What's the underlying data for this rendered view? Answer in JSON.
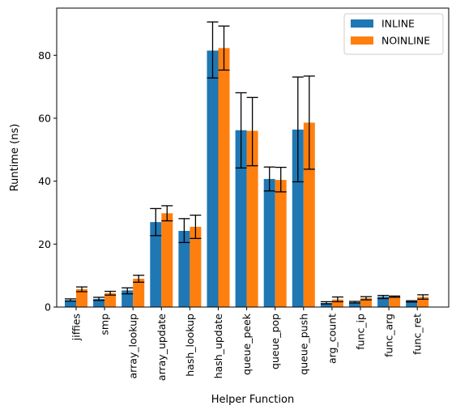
{
  "chart_data": {
    "type": "bar",
    "xlabel": "Helper Function",
    "ylabel": "Runtime (ns)",
    "ylim": [
      0,
      95
    ],
    "yticks": [
      0,
      20,
      40,
      60,
      80
    ],
    "grid": false,
    "legend_position": "top-right",
    "categories": [
      "jiffies",
      "smp",
      "array_lookup",
      "array_update",
      "hash_lookup",
      "hash_update",
      "queue_peek",
      "queue_pop",
      "queue_push",
      "arg_count",
      "func_ip",
      "func_arg",
      "func_ret"
    ],
    "series": [
      {
        "name": "INLINE",
        "color": "#1f77b4",
        "values": [
          2.2,
          2.6,
          5.3,
          27.0,
          24.2,
          81.5,
          56.2,
          40.7,
          56.4,
          1.3,
          1.5,
          3.3,
          1.8
        ],
        "err_low": [
          1.9,
          2.1,
          4.2,
          22.7,
          20.5,
          72.8,
          44.2,
          36.9,
          39.8,
          1.0,
          1.3,
          2.7,
          1.6
        ],
        "err_high": [
          2.6,
          3.1,
          6.1,
          31.3,
          28.1,
          90.6,
          68.1,
          44.5,
          73.1,
          1.7,
          1.8,
          3.7,
          2.0
        ]
      },
      {
        "name": "NOINLINE",
        "color": "#ff7f0e",
        "values": [
          5.7,
          4.4,
          9.0,
          29.8,
          25.5,
          82.3,
          56.0,
          40.4,
          58.6,
          2.4,
          2.8,
          3.3,
          3.2
        ],
        "err_low": [
          4.9,
          3.8,
          7.9,
          27.4,
          21.8,
          75.3,
          44.9,
          36.6,
          43.8,
          1.7,
          2.3,
          3.1,
          2.5
        ],
        "err_high": [
          6.4,
          5.0,
          10.1,
          32.2,
          29.2,
          89.3,
          66.6,
          44.4,
          73.4,
          3.2,
          3.3,
          3.5,
          3.9
        ]
      }
    ]
  }
}
